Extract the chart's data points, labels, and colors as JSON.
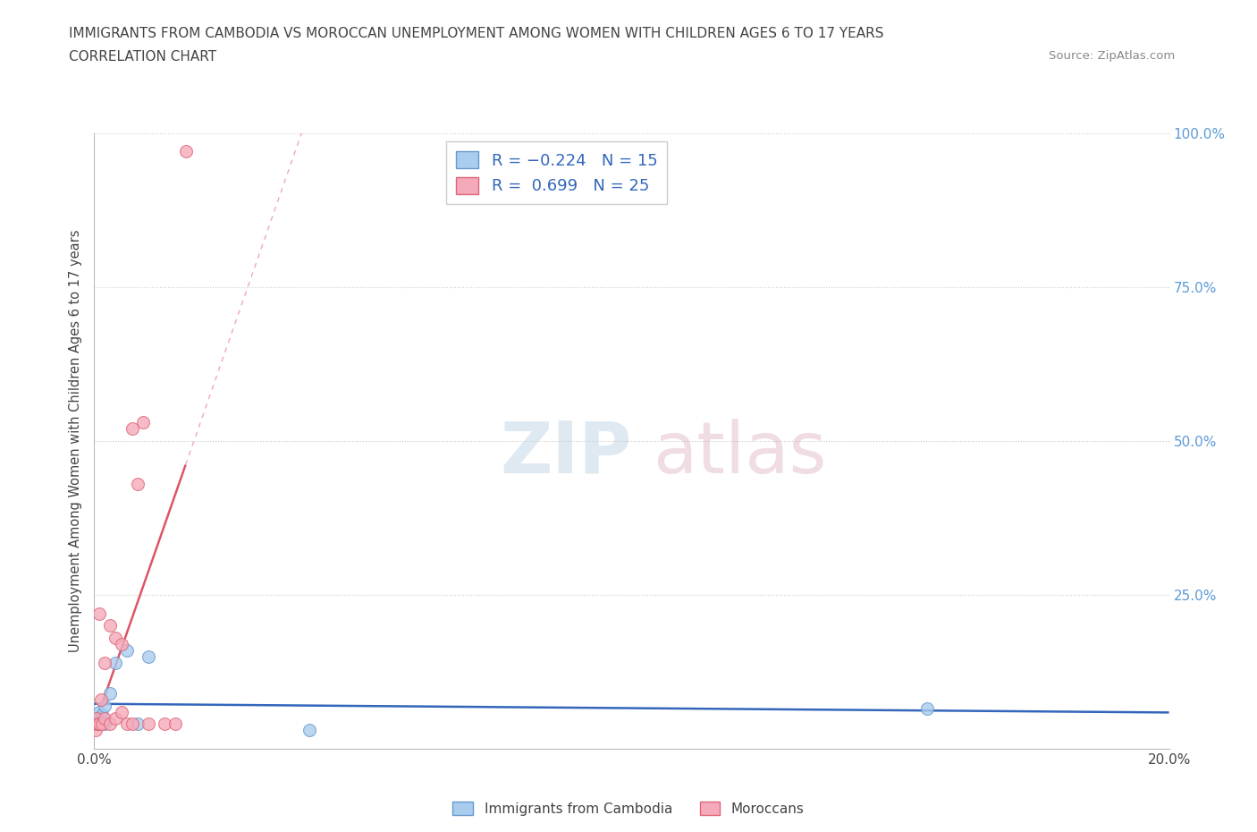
{
  "title_line1": "IMMIGRANTS FROM CAMBODIA VS MOROCCAN UNEMPLOYMENT AMONG WOMEN WITH CHILDREN AGES 6 TO 17 YEARS",
  "title_line2": "CORRELATION CHART",
  "source_text": "Source: ZipAtlas.com",
  "ylabel": "Unemployment Among Women with Children Ages 6 to 17 years",
  "legend_labels_bottom": [
    "Immigrants from Cambodia",
    "Moroccans"
  ],
  "xlim": [
    0.0,
    0.2
  ],
  "ylim": [
    0.0,
    1.0
  ],
  "cambodia_x": [
    0.0003,
    0.0005,
    0.0008,
    0.001,
    0.0012,
    0.0015,
    0.002,
    0.002,
    0.003,
    0.004,
    0.006,
    0.008,
    0.01,
    0.04,
    0.155
  ],
  "cambodia_y": [
    0.05,
    0.04,
    0.04,
    0.06,
    0.05,
    0.055,
    0.04,
    0.07,
    0.09,
    0.14,
    0.16,
    0.04,
    0.15,
    0.03,
    0.065
  ],
  "morocco_x": [
    0.0002,
    0.0004,
    0.0005,
    0.0007,
    0.001,
    0.001,
    0.0012,
    0.0015,
    0.002,
    0.002,
    0.003,
    0.003,
    0.004,
    0.004,
    0.005,
    0.005,
    0.006,
    0.007,
    0.007,
    0.008,
    0.009,
    0.01,
    0.013,
    0.015,
    0.017
  ],
  "morocco_y": [
    0.03,
    0.04,
    0.05,
    0.04,
    0.22,
    0.04,
    0.08,
    0.04,
    0.14,
    0.05,
    0.2,
    0.04,
    0.18,
    0.05,
    0.17,
    0.06,
    0.04,
    0.52,
    0.04,
    0.43,
    0.53,
    0.04,
    0.04,
    0.04,
    0.97
  ],
  "cambodia_color": "#aaccee",
  "cambodia_edge": "#6699cc",
  "morocco_color": "#f5aabb",
  "morocco_edge": "#dd6677",
  "trend_cambodia_color": "#3366bb",
  "trend_morocco_color": "#dd5566",
  "grid_color": "#cccccc",
  "background_color": "#ffffff",
  "title_color": "#444444",
  "right_axis_color": "#5b9bd5",
  "marker_size": 100
}
